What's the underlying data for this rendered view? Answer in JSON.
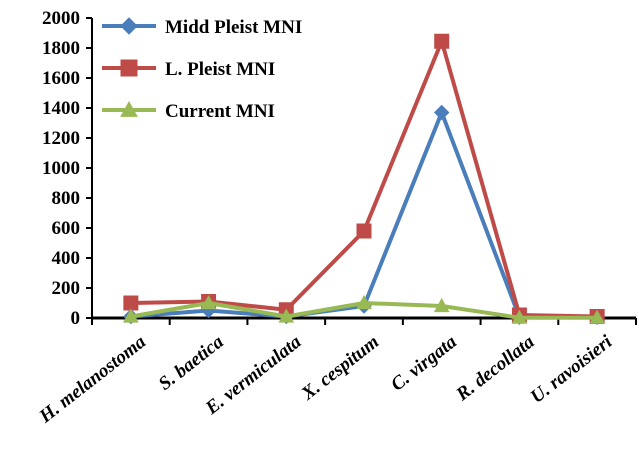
{
  "chart_data": {
    "type": "line",
    "categories": [
      "H. melanostoma",
      "S. baetica",
      "E. vermiculata",
      "X. cespitum",
      "C. virgata",
      "R. decollata",
      "U. ravoisieri"
    ],
    "yticks": [
      "0",
      "200",
      "400",
      "600",
      "800",
      "1000",
      "1200",
      "1400",
      "1600",
      "1800",
      "2000"
    ],
    "ylim": [
      0,
      2000
    ],
    "grid": false,
    "legend_position": "top-left",
    "series": [
      {
        "name": "Midd Pleist MNI",
        "color": "#4a7ebb",
        "marker": "diamond",
        "values": [
          10,
          50,
          10,
          80,
          1370,
          5,
          5
        ]
      },
      {
        "name": "L. Pleist MNI",
        "color": "#be4b48",
        "marker": "square",
        "values": [
          100,
          110,
          55,
          580,
          1845,
          20,
          10
        ]
      },
      {
        "name": "Current MNI",
        "color": "#98b954",
        "marker": "triangle",
        "values": [
          10,
          100,
          10,
          100,
          80,
          2,
          2
        ]
      }
    ]
  }
}
